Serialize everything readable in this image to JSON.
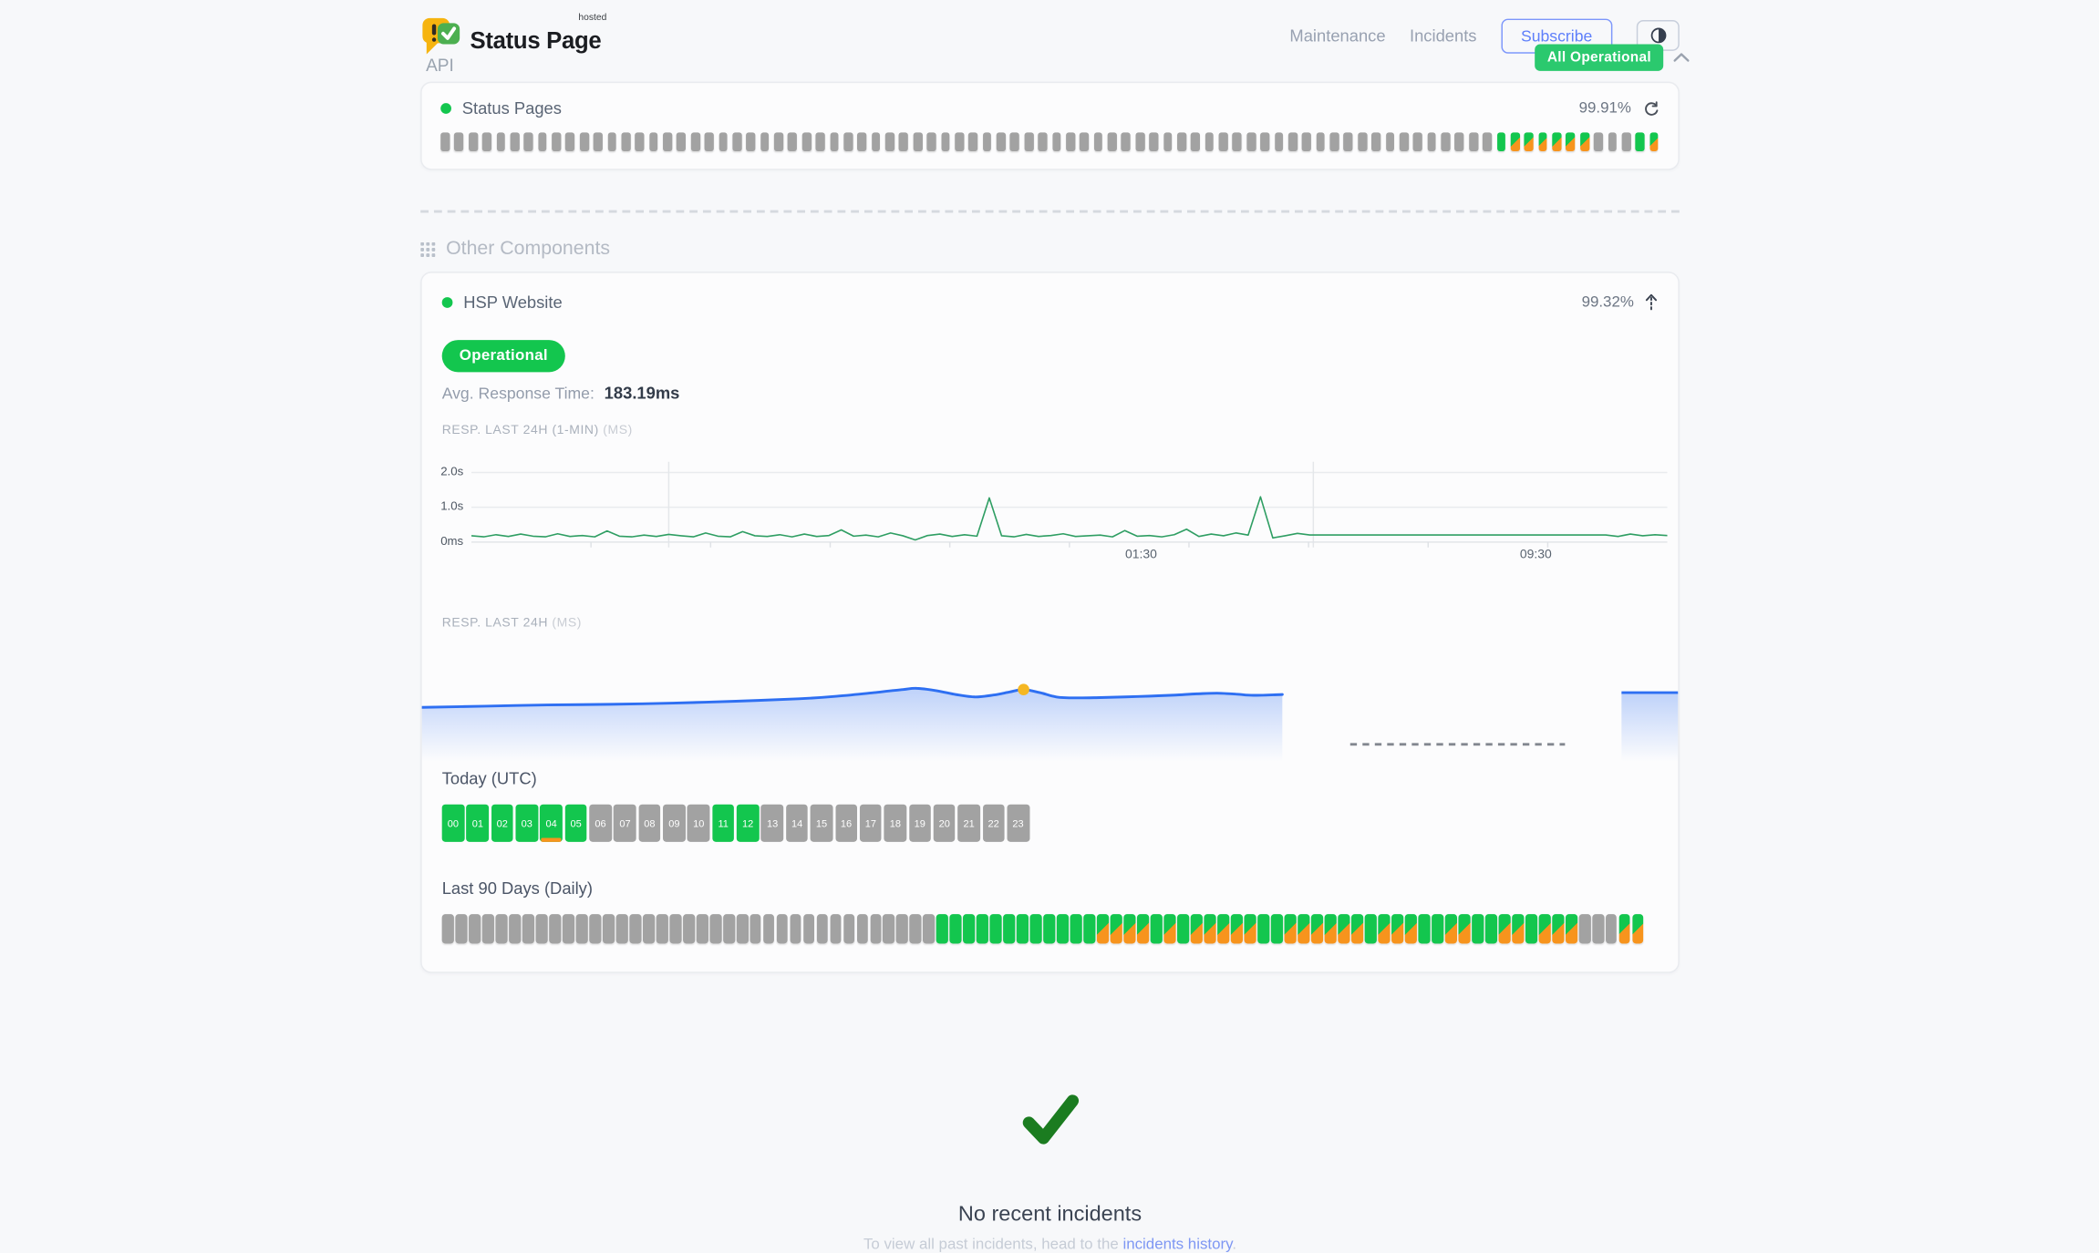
{
  "colors": {
    "green": "#13c64e",
    "orange": "#f7941d",
    "gray_bar": "#a2a2a2",
    "badge_green": "#2bc96e",
    "chart_line_green": "#2f9e63",
    "blue_line": "#2e6ff2",
    "yellow_dot": "#f5b723",
    "link_blue": "#7e97f3",
    "subscribe_blue": "#5e7ffa"
  },
  "header": {
    "brand": {
      "title": "Status Page",
      "superscript": "hosted"
    },
    "nav": [
      {
        "label": "Maintenance"
      },
      {
        "label": "Incidents"
      }
    ],
    "subscribe_label": "Subscribe",
    "status_badge": "All Operational"
  },
  "api_section": {
    "title": "API",
    "component": {
      "name": "Status Pages",
      "uptime": "99.91%"
    },
    "bars_runs": [
      {
        "state": "U",
        "count": 76
      },
      {
        "state": "O",
        "count": 1
      },
      {
        "state": "D",
        "count": 6
      },
      {
        "state": "U",
        "count": 3
      },
      {
        "state": "O",
        "count": 1
      },
      {
        "state": "D",
        "count": 1
      }
    ]
  },
  "other_section": {
    "title": "Other Components",
    "component": {
      "name": "HSP Website",
      "uptime": "99.32%",
      "status_label": "Operational",
      "avg_response_label": "Avg. Response Time:",
      "avg_response_value": "183.19ms"
    }
  },
  "chart_data": [
    {
      "type": "line",
      "title": "RESP. LAST 24H (1-MIN)",
      "unit": "(MS)",
      "ylabel_ticks": [
        "2.0s",
        "1.0s",
        "0ms"
      ],
      "ylim_ms": [
        0,
        2000
      ],
      "xticks": [
        {
          "label": "01:30",
          "pos": 0.56
        },
        {
          "label": "09:30",
          "pos": 0.89
        }
      ],
      "vlines": [
        0.165,
        0.704
      ],
      "values_ms": [
        180,
        150,
        210,
        160,
        230,
        170,
        150,
        240,
        160,
        190,
        150,
        320,
        170,
        150,
        200,
        160,
        220,
        180,
        150,
        260,
        170,
        150,
        300,
        180,
        160,
        210,
        150,
        230,
        160,
        190,
        350,
        170,
        200,
        150,
        260,
        180,
        60,
        190,
        230,
        160,
        210,
        170,
        1270,
        180,
        150,
        220,
        160,
        190,
        240,
        160,
        180,
        200,
        150,
        330,
        170,
        190,
        150,
        210,
        370,
        160,
        230,
        180,
        260,
        200,
        1300,
        120,
        180,
        250,
        205,
        205,
        205,
        205,
        205,
        205,
        205,
        205,
        205,
        205,
        205,
        205,
        205,
        205,
        205,
        205,
        205,
        205,
        205,
        205,
        205,
        205,
        205,
        205,
        205,
        160,
        230,
        180,
        210,
        190
      ]
    },
    {
      "type": "area",
      "title": "RESP. LAST 24H",
      "unit": "(MS)",
      "avg_ms": 183.19,
      "main_span": [
        0,
        0.685
      ],
      "dashed_span": [
        0.739,
        0.91
      ],
      "dashed_level": 0.86,
      "tail_span": [
        0.955,
        1.0
      ],
      "tail_level": 0.44,
      "dot_index": 16,
      "points": [
        [
          0,
          0.56
        ],
        [
          0.05,
          0.55
        ],
        [
          0.1,
          0.54
        ],
        [
          0.15,
          0.535
        ],
        [
          0.2,
          0.525
        ],
        [
          0.25,
          0.51
        ],
        [
          0.3,
          0.49
        ],
        [
          0.33,
          0.47
        ],
        [
          0.36,
          0.44
        ],
        [
          0.383,
          0.415
        ],
        [
          0.394,
          0.405
        ],
        [
          0.41,
          0.425
        ],
        [
          0.425,
          0.455
        ],
        [
          0.44,
          0.475
        ],
        [
          0.455,
          0.46
        ],
        [
          0.468,
          0.435
        ],
        [
          0.479,
          0.415
        ],
        [
          0.492,
          0.44
        ],
        [
          0.505,
          0.475
        ],
        [
          0.52,
          0.483
        ],
        [
          0.54,
          0.48
        ],
        [
          0.56,
          0.475
        ],
        [
          0.58,
          0.468
        ],
        [
          0.6,
          0.46
        ],
        [
          0.617,
          0.45
        ],
        [
          0.633,
          0.445
        ],
        [
          0.648,
          0.452
        ],
        [
          0.662,
          0.462
        ],
        [
          0.685,
          0.455
        ]
      ]
    },
    {
      "type": "heatmap-strip",
      "title": "Today (UTC)",
      "hours": [
        "00",
        "01",
        "02",
        "03",
        "04",
        "05",
        "06",
        "07",
        "08",
        "09",
        "10",
        "11",
        "12",
        "13",
        "14",
        "15",
        "16",
        "17",
        "18",
        "19",
        "20",
        "21",
        "22",
        "23"
      ],
      "states": "OOOOMOUUUUUOOUUUUUUUUUUU",
      "legend": {
        "U": "no data",
        "O": "operational",
        "M": "operational with marker",
        "D": "degraded"
      }
    },
    {
      "type": "heatmap-strip",
      "title": "Last 90 Days (Daily)",
      "states": "UUUUUUUUUUUUUUUUUUUUUUUUUUUUUUUUUUUUUOOOOOOOOOOOODDDDODODDDDDOODDDDDDODDDOODDOODDODDDUUUDD",
      "legend": {
        "U": "no data",
        "O": "operational",
        "D": "degraded"
      }
    }
  ],
  "footer": {
    "title": "No recent incidents",
    "subtitle_prefix": "To view all past incidents, head to the ",
    "link_label": "incidents history",
    "subtitle_suffix": "."
  }
}
